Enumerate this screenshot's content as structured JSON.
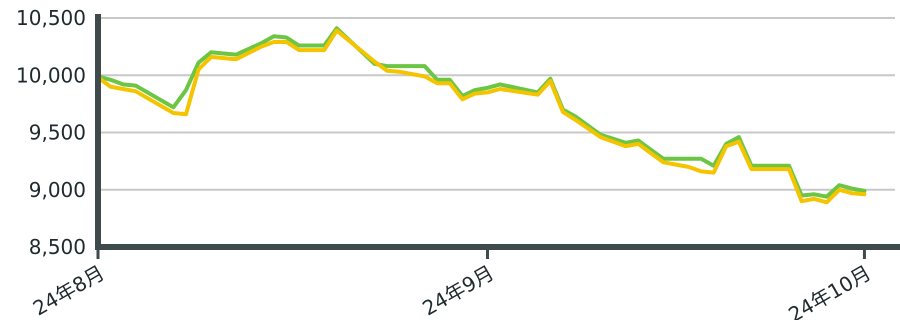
{
  "chart_data": {
    "type": "line",
    "title": "",
    "xlabel": "",
    "ylabel": "",
    "ylim": [
      8500,
      10500
    ],
    "yticks": [
      8500,
      9000,
      9500,
      10000,
      10500
    ],
    "ytick_labels": [
      "8,500",
      "9,000",
      "9,500",
      "10,000",
      "10,500"
    ],
    "xticks": [
      "2024-08-01",
      "2024-09-01",
      "2024-10-01"
    ],
    "xtick_labels": [
      "24年8月",
      "24年9月",
      "24年10月"
    ],
    "xlim": [
      "2024-08-01",
      "2024-10-02"
    ],
    "grid": "horizontal",
    "legend": "none",
    "colors": {
      "series_green": "#6cc644",
      "series_yellow": "#f5c400",
      "axis": "#3f4a4c",
      "grid": "#c8c8c8"
    },
    "x": [
      "2024-08-01",
      "2024-08-02",
      "2024-08-03",
      "2024-08-04",
      "2024-08-07",
      "2024-08-08",
      "2024-08-09",
      "2024-08-10",
      "2024-08-11",
      "2024-08-12",
      "2024-08-14",
      "2024-08-15",
      "2024-08-16",
      "2024-08-17",
      "2024-08-18",
      "2024-08-19",
      "2024-08-20",
      "2024-08-23",
      "2024-08-24",
      "2024-08-25",
      "2024-08-26",
      "2024-08-27",
      "2024-08-28",
      "2024-08-29",
      "2024-08-30",
      "2024-08-31",
      "2024-09-01",
      "2024-09-02",
      "2024-09-05",
      "2024-09-06",
      "2024-09-07",
      "2024-09-08",
      "2024-09-10",
      "2024-09-12",
      "2024-09-13",
      "2024-09-14",
      "2024-09-15",
      "2024-09-16",
      "2024-09-17",
      "2024-09-18",
      "2024-09-19",
      "2024-09-20",
      "2024-09-21",
      "2024-09-22",
      "2024-09-23",
      "2024-09-24",
      "2024-09-25",
      "2024-09-26",
      "2024-09-27",
      "2024-09-28",
      "2024-09-29",
      "2024-09-30",
      "2024-10-01"
    ],
    "series": [
      {
        "values": [
          9990,
          9960,
          9920,
          9910,
          9720,
          9870,
          10110,
          10200,
          10190,
          10180,
          10280,
          10340,
          10330,
          10260,
          10260,
          10260,
          10410,
          10100,
          10080,
          10080,
          10080,
          10080,
          9960,
          9960,
          9820,
          9870,
          9890,
          9920,
          9850,
          9970,
          9700,
          9640,
          9480,
          9410,
          9430,
          9350,
          9270,
          9270,
          9270,
          9270,
          9210,
          9400,
          9460,
          9210,
          9210,
          9210,
          9210,
          8950,
          8960,
          8940,
          9040,
          9010,
          8990
        ]
      },
      {
        "values": [
          9980,
          9900,
          9880,
          9860,
          9670,
          9660,
          10050,
          10160,
          10150,
          10140,
          10250,
          10290,
          10290,
          10220,
          10220,
          10220,
          10390,
          10120,
          10040,
          10030,
          10010,
          9990,
          9930,
          9930,
          9790,
          9840,
          9850,
          9880,
          9830,
          9950,
          9680,
          9610,
          9460,
          9380,
          9400,
          9320,
          9240,
          9220,
          9200,
          9160,
          9150,
          9380,
          9420,
          9180,
          9180,
          9180,
          9180,
          8900,
          8920,
          8890,
          9000,
          8970,
          8960
        ]
      }
    ]
  }
}
